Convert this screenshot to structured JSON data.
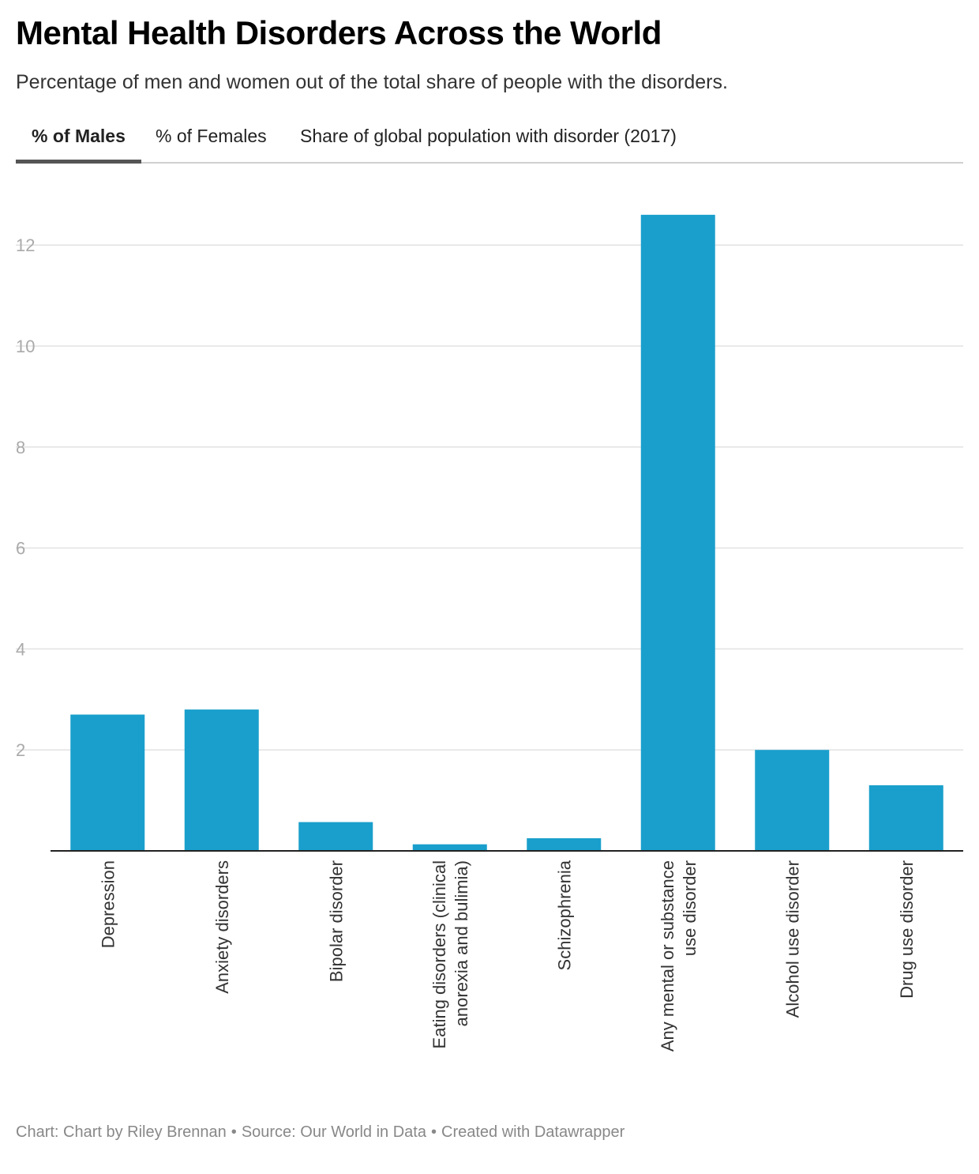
{
  "title": "Mental Health Disorders Across the World",
  "subtitle": "Percentage of men and women out of the total share of people with the disorders.",
  "tabs": [
    {
      "label": "% of Males",
      "active": true
    },
    {
      "label": "% of Females",
      "active": false
    },
    {
      "label": "Share of global population with disorder (2017)",
      "active": false
    }
  ],
  "footer": {
    "chart": "Chart: Chart by Riley Brennan",
    "source": "Source: Our World in Data",
    "created": "Created with Datawrapper",
    "separator": "•"
  },
  "colors": {
    "bar": "#1a9fcc",
    "grid": "#e2e2e2",
    "axis": "#222222",
    "tick": "#aaaaaa"
  },
  "chart_data": {
    "type": "bar",
    "categories": [
      [
        "Depression"
      ],
      [
        "Anxiety disorders"
      ],
      [
        "Bipolar disorder"
      ],
      [
        "Eating disorders (clinical",
        "anorexia and bulimia)"
      ],
      [
        "Schizophrenia"
      ],
      [
        "Any mental or substance",
        "use disorder"
      ],
      [
        "Alcohol use disorder"
      ],
      [
        "Drug use disorder"
      ]
    ],
    "values": [
      2.7,
      2.8,
      0.57,
      0.13,
      0.25,
      12.6,
      2.0,
      1.3
    ],
    "ylim": [
      0,
      12.6
    ],
    "yticks": [
      2,
      4,
      6,
      8,
      10,
      12
    ],
    "grid": true,
    "xlabel": "",
    "ylabel": ""
  }
}
